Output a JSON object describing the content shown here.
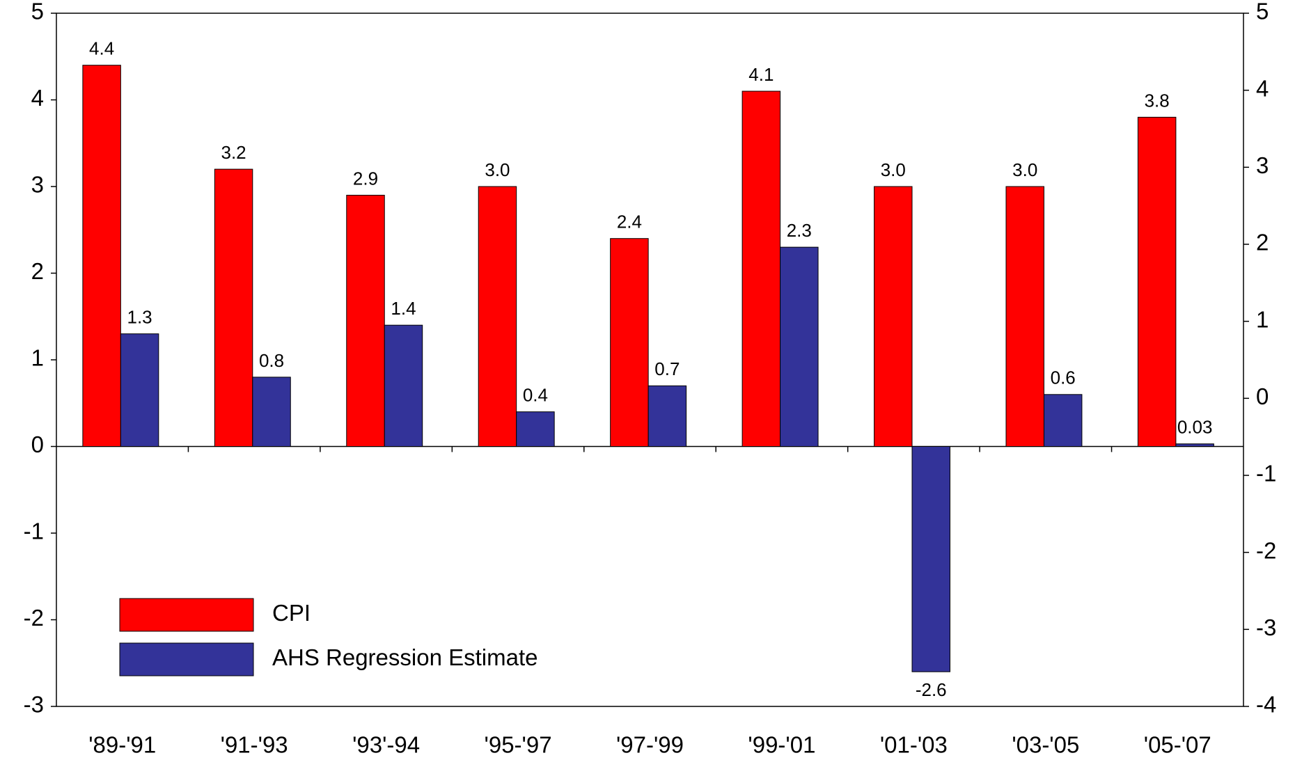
{
  "chart_data": {
    "type": "bar",
    "categories": [
      "'89-'91",
      "'91-'93",
      "'93'-94",
      "'95-'97",
      "'97-'99",
      "'99-'01",
      "'01-'03",
      "'03-'05",
      "'05-'07"
    ],
    "series": [
      {
        "name": "CPI",
        "color": "#ff0000",
        "values": [
          4.4,
          3.2,
          2.9,
          3.0,
          2.4,
          4.1,
          3.0,
          3.0,
          3.8
        ],
        "value_labels": [
          "4.4",
          "3.2",
          "2.9",
          "3.0",
          "2.4",
          "4.1",
          "3.0",
          "3.0",
          "3.8"
        ]
      },
      {
        "name": "AHS Regression Estimate",
        "color": "#333399",
        "values": [
          1.3,
          0.8,
          1.4,
          0.4,
          0.7,
          2.3,
          -2.6,
          0.6,
          0.03
        ]
      }
    ],
    "ylim": [
      -3,
      5
    ],
    "yticks": [
      -3,
      -2,
      -1,
      0,
      1,
      2,
      3,
      4,
      5
    ],
    "y2lim": [
      -4,
      5
    ],
    "y2ticks": [
      -4,
      -3,
      -2,
      -1,
      0,
      1,
      2,
      3,
      4,
      5
    ],
    "legend": "lower-left"
  }
}
